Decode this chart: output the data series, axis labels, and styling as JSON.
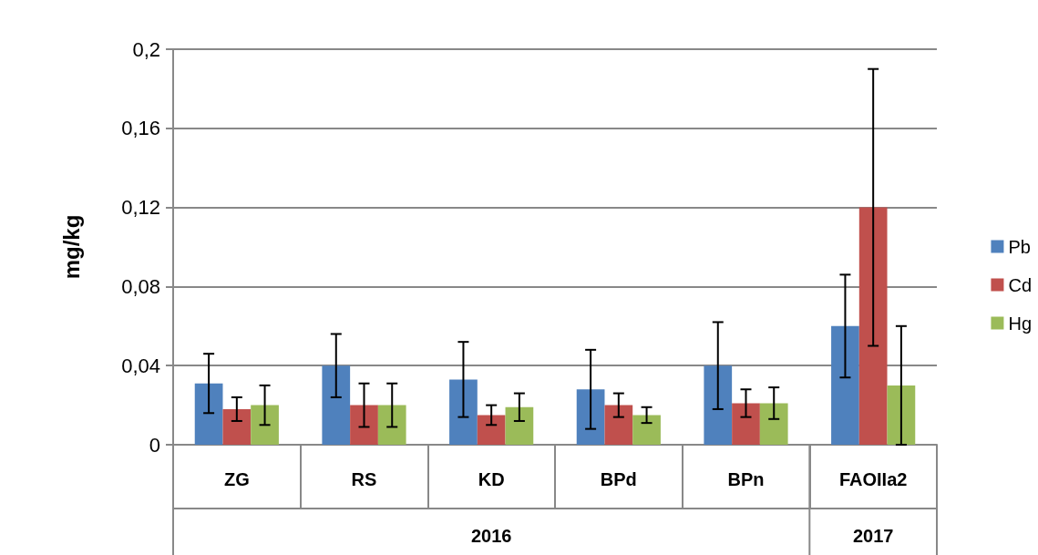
{
  "chart_data": {
    "type": "bar",
    "ylabel": "mg/kg",
    "categories": [
      "ZG",
      "RS",
      "KD",
      "BPd",
      "BPn",
      "FAOIIa2"
    ],
    "series": [
      {
        "name": "Pb",
        "color": "#4f81bd",
        "values": [
          0.031,
          0.04,
          0.033,
          0.028,
          0.04,
          0.06
        ],
        "errors": [
          0.015,
          0.016,
          0.019,
          0.02,
          0.022,
          0.026
        ]
      },
      {
        "name": "Cd",
        "color": "#c0504d",
        "values": [
          0.018,
          0.02,
          0.015,
          0.02,
          0.021,
          0.12
        ],
        "errors": [
          0.006,
          0.011,
          0.005,
          0.006,
          0.007,
          0.07
        ]
      },
      {
        "name": "Hg",
        "color": "#9bbb59",
        "values": [
          0.02,
          0.02,
          0.019,
          0.015,
          0.021,
          0.03
        ],
        "errors": [
          0.01,
          0.011,
          0.007,
          0.004,
          0.008,
          0.03
        ]
      }
    ],
    "ylim": [
      0,
      0.2
    ],
    "yticks": [
      {
        "value": 0,
        "label": "0"
      },
      {
        "value": 0.04,
        "label": "0,04"
      },
      {
        "value": 0.08,
        "label": "0,08"
      },
      {
        "value": 0.12,
        "label": "0,12"
      },
      {
        "value": 0.16,
        "label": "0,16"
      },
      {
        "value": 0.2,
        "label": "0,2"
      }
    ],
    "annotations": [
      "2016",
      "2017"
    ],
    "grid": "y",
    "legend": "right"
  }
}
